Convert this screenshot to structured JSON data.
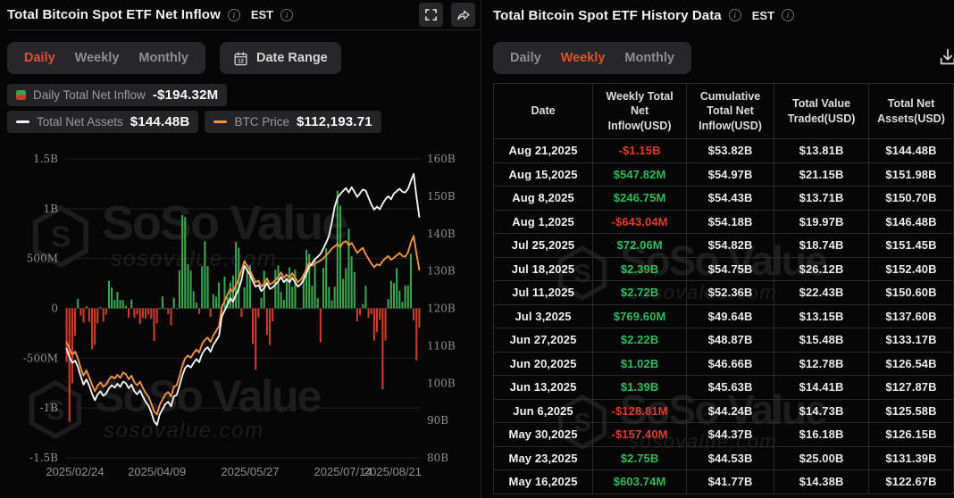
{
  "watermark": {
    "brand": "SoSo Value",
    "domain": "sosovalue.com"
  },
  "colors": {
    "accent_active_tab": "#e0512d",
    "bar_positive": "#3aa34d",
    "bar_negative": "#cf3b2a",
    "line_assets": "#f2f2f2",
    "line_btc": "#ef9440",
    "table_positive": "#2ebd59",
    "table_negative": "#e03b2e",
    "grid": "#202023",
    "axis_text": "#8f8f8f"
  },
  "left_panel": {
    "title": "Total Bitcoin Spot ETF Net Inflow",
    "est_label": "EST",
    "tabs": [
      "Daily",
      "Weekly",
      "Monthly"
    ],
    "active_tab": "Daily",
    "date_range_label": "Date Range",
    "legend": {
      "inflow_label": "Daily Total Net Inflow",
      "inflow_value": "-$194.32M",
      "assets_label": "Total Net Assets",
      "assets_value": "$144.48B",
      "btc_label": "BTC Price",
      "btc_value": "$112,193.71"
    }
  },
  "chart_data": {
    "type": "bar",
    "note": "Daily Total Net Inflow bars (left axis, $M) with Total Net Assets and BTC Price lines (right axis scale, $B); BTC price series is plotted mapped onto the right axis scale.",
    "left_axis": {
      "min": -1500,
      "max": 1500,
      "ticks": [
        {
          "v": 1500,
          "label": "1.5B"
        },
        {
          "v": 1000,
          "label": "1B"
        },
        {
          "v": 500,
          "label": "500M"
        },
        {
          "v": 0,
          "label": "0"
        },
        {
          "v": -500,
          "label": "-500M"
        },
        {
          "v": -1000,
          "label": "-1B"
        },
        {
          "v": -1500,
          "label": "-1.5B"
        }
      ]
    },
    "right_axis": {
      "min": 80,
      "max": 160,
      "ticks": [
        {
          "v": 160,
          "label": "160B"
        },
        {
          "v": 150,
          "label": "150B"
        },
        {
          "v": 140,
          "label": "140B"
        },
        {
          "v": 130,
          "label": "130B"
        },
        {
          "v": 120,
          "label": "120B"
        },
        {
          "v": 110,
          "label": "110B"
        },
        {
          "v": 100,
          "label": "100B"
        },
        {
          "v": 90,
          "label": "90B"
        },
        {
          "v": 80,
          "label": "80B"
        }
      ]
    },
    "x_axis": {
      "ticks": [
        {
          "i": 0,
          "label": "2025/02/24"
        },
        {
          "i": 32,
          "label": "2025/04/09"
        },
        {
          "i": 65,
          "label": "2025/05/27"
        },
        {
          "i": 98,
          "label": "2025/07/14"
        },
        {
          "i": 125,
          "label": "2025/08/21"
        }
      ]
    },
    "bars_unit": "USD millions",
    "bars": [
      -539,
      -1140,
      -754,
      -276,
      94,
      -74,
      -143,
      21,
      -134,
      -409,
      -369,
      -152,
      13,
      -135,
      -63,
      274,
      209,
      84,
      165,
      83,
      84,
      26,
      -93,
      89,
      -94,
      -60,
      -158,
      -99,
      -100,
      -65,
      -104,
      -326,
      -150,
      2,
      120,
      1,
      -59,
      -171,
      106,
      -7,
      381,
      936,
      917,
      442,
      380,
      173,
      59,
      -56,
      422,
      675,
      425,
      -85,
      142,
      117,
      260,
      -91,
      319,
      115,
      260,
      329,
      667,
      609,
      -86,
      211,
      385,
      433,
      -358,
      -616,
      -94,
      105,
      378,
      -268,
      -368,
      -130,
      386,
      431,
      164,
      86,
      301,
      412,
      216,
      389,
      6,
      1,
      350,
      588,
      548,
      226,
      501,
      102,
      -342,
      407,
      602,
      216,
      80,
      218,
      1180,
      1030,
      297,
      403,
      799,
      522,
      363,
      -131,
      -68,
      44,
      227,
      -93,
      -56,
      -324,
      -238,
      -115,
      -812,
      -323,
      92,
      277,
      253,
      404,
      178,
      65,
      230,
      231,
      547,
      -121,
      -523,
      -194
    ],
    "series": [
      {
        "name": "Total Net Assets",
        "unit": "USD billions",
        "values": [
          109.2,
          107.0,
          105.4,
          106.0,
          104.4,
          101.8,
          99.6,
          101.0,
          99.4,
          97.2,
          95.4,
          97.0,
          97.8,
          96.6,
          97.2,
          98.6,
          99.4,
          98.8,
          99.8,
          99.0,
          100.4,
          100.0,
          98.6,
          99.6,
          97.8,
          97.0,
          98.0,
          96.4,
          95.0,
          94.0,
          92.2,
          89.8,
          88.8,
          91.6,
          93.0,
          94.4,
          95.0,
          93.8,
          96.4,
          96.8,
          99.2,
          102.0,
          104.0,
          104.8,
          104.2,
          105.4,
          106.4,
          105.6,
          107.8,
          109.0,
          109.6,
          108.4,
          110.2,
          111.4,
          112.6,
          117.8,
          119.4,
          121.0,
          122.7,
          121.8,
          123.6,
          125.2,
          127.6,
          131.4,
          130.2,
          129.0,
          127.2,
          125.8,
          126.2,
          124.6,
          125.4,
          126.8,
          125.2,
          125.6,
          126.4,
          127.2,
          128.4,
          127.0,
          127.9,
          127.0,
          128.2,
          127.0,
          125.8,
          126.5,
          127.6,
          129.4,
          131.2,
          132.0,
          133.2,
          133.8,
          134.6,
          136.0,
          137.6,
          139.4,
          143.0,
          147.2,
          149.6,
          150.6,
          151.4,
          152.2,
          151.0,
          152.4,
          151.2,
          149.8,
          150.8,
          151.8,
          151.5,
          149.6,
          147.8,
          146.4,
          147.2,
          146.5,
          148.0,
          149.2,
          150.0,
          149.2,
          150.7,
          151.4,
          152.0,
          151.2,
          151.0,
          152.0,
          154.0,
          156.0,
          149.8,
          144.5
        ]
      },
      {
        "name": "BTC Price (mapped to right axis)",
        "unit": "right-axis units",
        "values": [
          111.0,
          109.2,
          107.6,
          108.4,
          106.6,
          104.0,
          102.0,
          103.4,
          101.6,
          99.6,
          97.8,
          99.4,
          100.2,
          99.0,
          99.6,
          101.0,
          101.8,
          101.2,
          102.2,
          101.4,
          102.8,
          102.4,
          101.0,
          102.0,
          100.2,
          99.4,
          100.4,
          98.8,
          97.4,
          96.4,
          94.6,
          92.4,
          91.6,
          94.2,
          95.6,
          97.0,
          97.6,
          96.4,
          99.0,
          99.4,
          101.8,
          104.6,
          106.6,
          107.4,
          106.8,
          108.0,
          109.0,
          108.2,
          110.4,
          111.6,
          112.2,
          111.0,
          112.8,
          114.0,
          115.2,
          120.4,
          122.0,
          123.6,
          125.2,
          124.4,
          126.2,
          127.8,
          130.2,
          132.6,
          131.4,
          130.2,
          128.4,
          127.0,
          127.4,
          125.8,
          126.6,
          128.0,
          126.4,
          126.8,
          127.6,
          128.4,
          129.6,
          128.2,
          129.0,
          128.2,
          129.4,
          128.2,
          127.0,
          127.7,
          128.8,
          130.6,
          132.2,
          131.4,
          132.0,
          132.4,
          132.8,
          133.4,
          134.2,
          135.0,
          136.0,
          136.6,
          137.2,
          136.4,
          137.6,
          138.0,
          136.8,
          137.5,
          136.2,
          134.8,
          135.6,
          136.2,
          134.5,
          133.2,
          132.0,
          131.0,
          131.8,
          131.5,
          132.6,
          133.4,
          134.0,
          133.0,
          133.5,
          134.2,
          134.8,
          134.0,
          133.8,
          135.0,
          137.5,
          139.4,
          134.6,
          130.3
        ]
      }
    ],
    "title": "Total Bitcoin Spot ETF Net Inflow (Daily)",
    "legend_position": "top-left",
    "grid": true
  },
  "right_panel": {
    "title": "Total Bitcoin Spot ETF History Data",
    "est_label": "EST",
    "tabs": [
      "Daily",
      "Weekly",
      "Monthly"
    ],
    "active_tab": "Weekly",
    "table": {
      "columns": [
        "Date",
        "Weekly Total Net Inflow(USD)",
        "Cumulative Total Net Inflow(USD)",
        "Total Value Traded(USD)",
        "Total Net Assets(USD)"
      ],
      "rows": [
        {
          "date": "Aug 21,2025",
          "inflow": "-$1.15B",
          "negative": true,
          "cumulative": "$53.82B",
          "traded": "$13.81B",
          "assets": "$144.48B"
        },
        {
          "date": "Aug 15,2025",
          "inflow": "$547.82M",
          "negative": false,
          "cumulative": "$54.97B",
          "traded": "$21.15B",
          "assets": "$151.98B"
        },
        {
          "date": "Aug 8,2025",
          "inflow": "$246.75M",
          "negative": false,
          "cumulative": "$54.43B",
          "traded": "$13.71B",
          "assets": "$150.70B"
        },
        {
          "date": "Aug 1,2025",
          "inflow": "-$643.04M",
          "negative": true,
          "cumulative": "$54.18B",
          "traded": "$19.97B",
          "assets": "$146.48B"
        },
        {
          "date": "Jul 25,2025",
          "inflow": "$72.06M",
          "negative": false,
          "cumulative": "$54.82B",
          "traded": "$18.74B",
          "assets": "$151.45B"
        },
        {
          "date": "Jul 18,2025",
          "inflow": "$2.39B",
          "negative": false,
          "cumulative": "$54.75B",
          "traded": "$26.12B",
          "assets": "$152.40B"
        },
        {
          "date": "Jul 11,2025",
          "inflow": "$2.72B",
          "negative": false,
          "cumulative": "$52.36B",
          "traded": "$22.43B",
          "assets": "$150.60B"
        },
        {
          "date": "Jul 3,2025",
          "inflow": "$769.60M",
          "negative": false,
          "cumulative": "$49.64B",
          "traded": "$13.15B",
          "assets": "$137.60B"
        },
        {
          "date": "Jun 27,2025",
          "inflow": "$2.22B",
          "negative": false,
          "cumulative": "$48.87B",
          "traded": "$15.48B",
          "assets": "$133.17B"
        },
        {
          "date": "Jun 20,2025",
          "inflow": "$1.02B",
          "negative": false,
          "cumulative": "$46.66B",
          "traded": "$12.78B",
          "assets": "$126.54B"
        },
        {
          "date": "Jun 13,2025",
          "inflow": "$1.39B",
          "negative": false,
          "cumulative": "$45.63B",
          "traded": "$14.41B",
          "assets": "$127.87B"
        },
        {
          "date": "Jun 6,2025",
          "inflow": "-$128.81M",
          "negative": true,
          "cumulative": "$44.24B",
          "traded": "$14.73B",
          "assets": "$125.58B"
        },
        {
          "date": "May 30,2025",
          "inflow": "-$157.40M",
          "negative": true,
          "cumulative": "$44.37B",
          "traded": "$16.18B",
          "assets": "$126.15B"
        },
        {
          "date": "May 23,2025",
          "inflow": "$2.75B",
          "negative": false,
          "cumulative": "$44.53B",
          "traded": "$25.00B",
          "assets": "$131.39B"
        },
        {
          "date": "May 16,2025",
          "inflow": "$603.74M",
          "negative": false,
          "cumulative": "$41.77B",
          "traded": "$14.38B",
          "assets": "$122.67B"
        }
      ]
    }
  }
}
